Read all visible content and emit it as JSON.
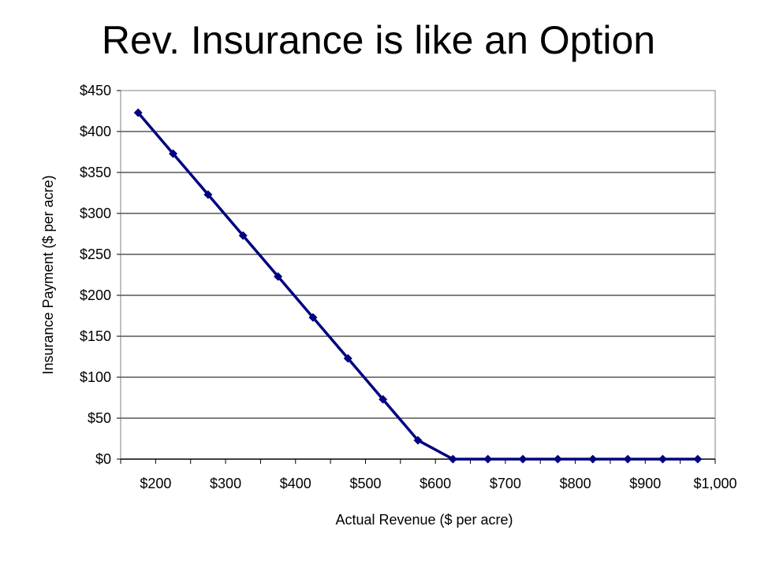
{
  "slide": {
    "title": "Rev. Insurance is like an Option"
  },
  "colors": {
    "series": "#000080",
    "gridline": "#000000",
    "background": "#ffffff"
  },
  "chart_data": {
    "type": "line",
    "title": "",
    "xlabel": "Actual Revenue ($ per acre)",
    "ylabel": "Insurance Payment ($ per acre)",
    "x_tick_labels": [
      "$200",
      "$300",
      "$400",
      "$500",
      "$600",
      "$700",
      "$800",
      "$900",
      "$1,000"
    ],
    "y_tick_labels": [
      "$0",
      "$50",
      "$100",
      "$150",
      "$200",
      "$250",
      "$300",
      "$350",
      "$400",
      "$450"
    ],
    "ylim": [
      0,
      450
    ],
    "grid": "horizontal",
    "legend": "none",
    "series": [
      {
        "marker": "diamond",
        "points": [
          {
            "x": 175,
            "y": 423
          },
          {
            "x": 225,
            "y": 373
          },
          {
            "x": 275,
            "y": 323
          },
          {
            "x": 325,
            "y": 273
          },
          {
            "x": 375,
            "y": 223
          },
          {
            "x": 425,
            "y": 173
          },
          {
            "x": 475,
            "y": 123
          },
          {
            "x": 525,
            "y": 73
          },
          {
            "x": 575,
            "y": 23
          },
          {
            "x": 625,
            "y": 0
          },
          {
            "x": 675,
            "y": 0
          },
          {
            "x": 725,
            "y": 0
          },
          {
            "x": 775,
            "y": 0
          },
          {
            "x": 825,
            "y": 0
          },
          {
            "x": 875,
            "y": 0
          },
          {
            "x": 925,
            "y": 0
          },
          {
            "x": 975,
            "y": 0
          }
        ]
      }
    ]
  }
}
